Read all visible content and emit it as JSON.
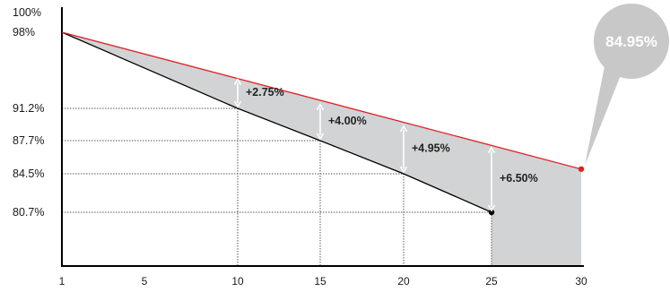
{
  "chart_data": {
    "type": "area",
    "title": "",
    "xlabel": "",
    "ylabel": "",
    "x_ticks": [
      "1",
      "5",
      "10",
      "15",
      "20",
      "25",
      "30"
    ],
    "y_ticks": [
      {
        "value": 100,
        "label": "100%"
      },
      {
        "value": 98,
        "label": "98%"
      },
      {
        "value": 91.2,
        "label": "91.2%"
      },
      {
        "value": 87.7,
        "label": "87.7%"
      },
      {
        "value": 84.5,
        "label": "84.5%"
      },
      {
        "value": 80.7,
        "label": "80.7%"
      }
    ],
    "xlim": [
      1,
      30
    ],
    "series": [
      {
        "points": [
          {
            "x": 1,
            "y": 98
          },
          {
            "x": 10,
            "y": 91.2
          },
          {
            "x": 15,
            "y": 87.7
          },
          {
            "x": 20,
            "y": 84.5
          },
          {
            "x": 25,
            "y": 80.7
          }
        ],
        "color": "#000000"
      },
      {
        "points": [
          {
            "x": 1,
            "y": 98
          },
          {
            "x": 30,
            "y": 84.95
          }
        ],
        "color": "#e31e24"
      }
    ],
    "annotations": [
      {
        "x": 10,
        "label": "+2.75%"
      },
      {
        "x": 15,
        "label": "+4.00%"
      },
      {
        "x": 20,
        "label": "+4.95%"
      },
      {
        "x": 25,
        "label": "+6.50%"
      }
    ],
    "callout": {
      "label": "84.95%",
      "color": "#c8c8c8"
    },
    "fill_color": "#d1d3d4"
  }
}
